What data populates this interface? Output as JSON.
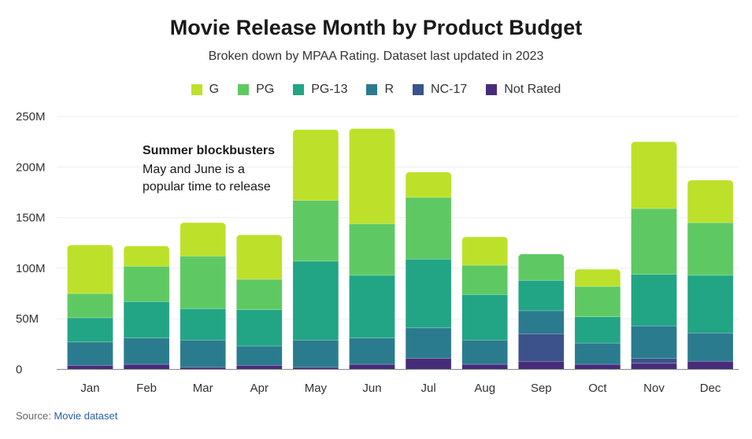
{
  "chart_data": {
    "type": "bar",
    "stacked": true,
    "title": "Movie Release Month by Product Budget",
    "subtitle": "Broken down by MPAA Rating. Dataset last updated in 2023",
    "categories": [
      "Jan",
      "Feb",
      "Mar",
      "Apr",
      "May",
      "Jun",
      "Jul",
      "Aug",
      "Sep",
      "Oct",
      "Nov",
      "Dec"
    ],
    "series": [
      {
        "name": "Not Rated",
        "color": "#472c7a",
        "values": [
          4,
          5,
          2,
          4,
          2,
          5,
          11,
          5,
          8,
          5,
          6,
          8
        ]
      },
      {
        "name": "NC-17",
        "color": "#3b528b",
        "values": [
          0,
          0,
          0,
          0,
          0,
          0,
          0,
          0,
          27,
          0,
          5,
          0
        ]
      },
      {
        "name": "R",
        "color": "#2b7b8e",
        "values": [
          23,
          26,
          27,
          19,
          27,
          26,
          30,
          24,
          23,
          21,
          32,
          28
        ]
      },
      {
        "name": "PG-13",
        "color": "#22a584",
        "values": [
          24,
          36,
          31,
          36,
          78,
          62,
          68,
          45,
          30,
          26,
          51,
          57
        ]
      },
      {
        "name": "PG",
        "color": "#5ec962",
        "values": [
          24,
          35,
          52,
          30,
          60,
          51,
          61,
          29,
          26,
          30,
          65,
          52
        ]
      },
      {
        "name": "G",
        "color": "#bde12a",
        "values": [
          48,
          20,
          33,
          44,
          70,
          94,
          25,
          28,
          0,
          17,
          66,
          42
        ]
      }
    ],
    "legend_order": [
      "G",
      "PG",
      "PG-13",
      "R",
      "NC-17",
      "Not Rated"
    ],
    "legend_position": "top",
    "ylim": [
      0,
      250
    ],
    "yticks": [
      0,
      50,
      100,
      150,
      200,
      250
    ],
    "ytick_labels": [
      "0",
      "50M",
      "100M",
      "150M",
      "200M",
      "250M"
    ],
    "xlabel": "",
    "ylabel": "",
    "grid": true,
    "annotation": {
      "title": "Summer blockbusters",
      "lines": [
        "May and June is a",
        "popular time to release"
      ]
    },
    "source_label": "Source:",
    "source_link": "Movie dataset"
  }
}
